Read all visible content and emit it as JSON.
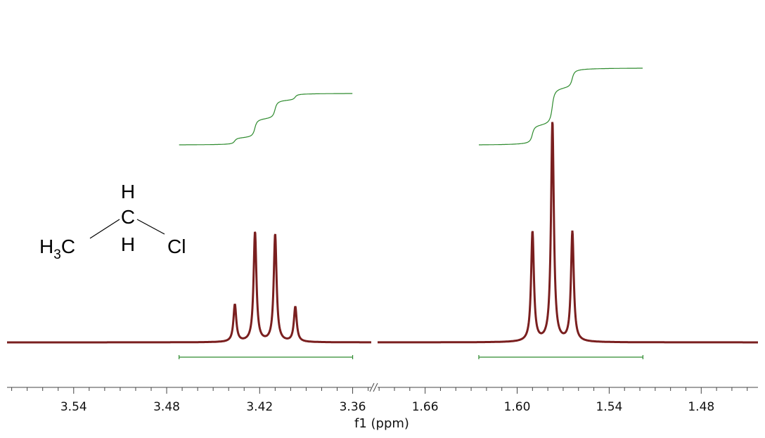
{
  "chart_data": {
    "type": "line",
    "xlabel": "f1 (ppm)",
    "x_reversed": true,
    "broken_axis": true,
    "spectrum_color": "#7a1f1f",
    "integral_color": "#2e8b2e",
    "panels": [
      {
        "xlim": [
          3.583,
          3.348
        ],
        "ticks": [
          "3.54",
          "3.48",
          "3.42",
          "3.36"
        ],
        "multiplicity": "quartet",
        "peaks": [
          {
            "ppm": 3.436,
            "intensity": 0.16
          },
          {
            "ppm": 3.423,
            "intensity": 0.47
          },
          {
            "ppm": 3.41,
            "intensity": 0.46
          },
          {
            "ppm": 3.397,
            "intensity": 0.15
          }
        ],
        "integral_range": [
          3.472,
          3.36
        ]
      },
      {
        "xlim": [
          1.691,
          1.443
        ],
        "ticks": [
          "1.66",
          "1.60",
          "1.54",
          "1.48"
        ],
        "multiplicity": "triplet",
        "peaks": [
          {
            "ppm": 1.59,
            "intensity": 0.47
          },
          {
            "ppm": 1.577,
            "intensity": 0.94
          },
          {
            "ppm": 1.564,
            "intensity": 0.47
          }
        ],
        "integral_range": [
          1.625,
          1.518
        ]
      }
    ]
  },
  "molecule": {
    "top_h": "H",
    "center_c": "C",
    "bottom_h": "H",
    "left_group_main": "H",
    "left_group_sub": "3",
    "left_group_end": "C",
    "right_group": "Cl"
  }
}
